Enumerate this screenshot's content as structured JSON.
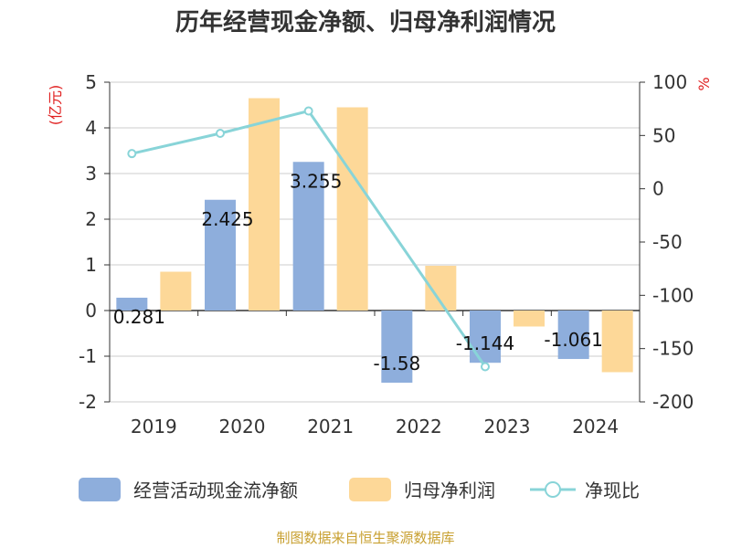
{
  "chart_data": {
    "type": "bar",
    "title": "历年经营现金净额、归母净利润情况",
    "categories": [
      "2019",
      "2020",
      "2021",
      "2022",
      "2023",
      "2024"
    ],
    "series": [
      {
        "name": "经营活动现金流净额",
        "type": "bar",
        "axis": "left",
        "color": "#8eaedc",
        "values": [
          0.281,
          2.425,
          3.255,
          -1.58,
          -1.144,
          -1.061
        ],
        "labels": [
          "0.281",
          "2.425",
          "3.255",
          "-1.58",
          "-1.144",
          "-1.061"
        ]
      },
      {
        "name": "归母净利润",
        "type": "bar",
        "axis": "left",
        "color": "#fdd898",
        "values": [
          0.85,
          4.65,
          4.45,
          0.98,
          -0.35,
          -1.35
        ]
      },
      {
        "name": "净现比",
        "type": "line",
        "axis": "right",
        "color": "#88d4d8",
        "values": [
          33,
          52,
          73,
          null,
          -167,
          null
        ]
      }
    ],
    "y_left": {
      "unit": "(亿元)",
      "ylim": [
        -2,
        5
      ],
      "ticks": [
        "5",
        "4",
        "3",
        "2",
        "1",
        "0",
        "-1",
        "-2"
      ]
    },
    "y_right": {
      "unit": "%",
      "ylim": [
        -200,
        100
      ],
      "ticks": [
        "100",
        "50",
        "0",
        "-50",
        "-100",
        "-150",
        "-200"
      ]
    },
    "source": "制图数据来自恒生聚源数据库"
  }
}
